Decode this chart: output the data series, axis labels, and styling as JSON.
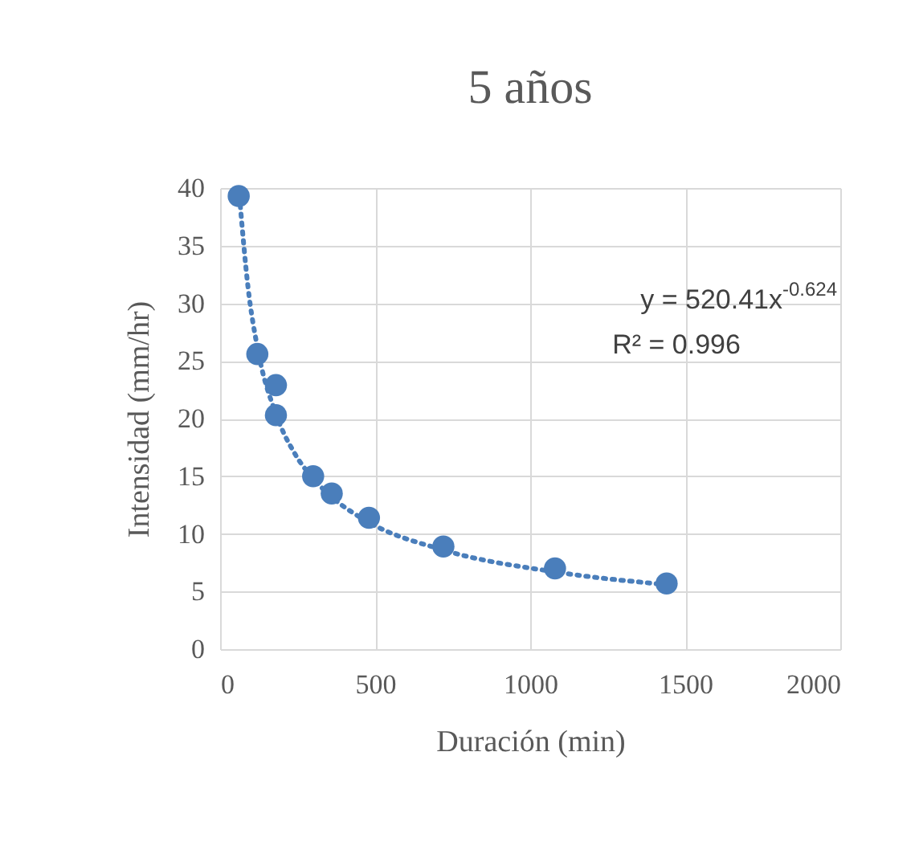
{
  "chart_data": {
    "type": "scatter",
    "title": "5 años",
    "xlabel": "Duración (min)",
    "ylabel": "Intensidad (mm/hr)",
    "annotations": [
      "y = 520.41x$^{-0.624}$",
      "R² = 0.996"
    ],
    "series": [
      {
        "type": "scatter",
        "color": "#4a7ebb",
        "x": [
          60,
          120,
          180,
          180,
          300,
          360,
          480,
          720,
          1080,
          1440
        ],
        "values": [
          39.3,
          25.6,
          22.9,
          20.3,
          15.0,
          13.5,
          11.4,
          8.9,
          7.0,
          5.7
        ]
      },
      {
        "type": "line",
        "color": "#4a7ebb",
        "line_style": "dotted",
        "marker": "none",
        "x": [
          65,
          90,
          120,
          180,
          240,
          300,
          360,
          480,
          720,
          1080,
          1440
        ],
        "values": [
          38.5,
          31.4,
          26.2,
          20.4,
          17.0,
          14.8,
          13.2,
          11.0,
          8.6,
          6.7,
          5.6
        ]
      }
    ],
    "marker": "circle",
    "grid": true,
    "xlim": [
      0,
      2000
    ],
    "xticks": [
      0,
      500,
      1000,
      1500,
      2000
    ],
    "ylim": [
      0,
      40
    ],
    "yticks": [
      0,
      5,
      10,
      15,
      20,
      25,
      30,
      35,
      40
    ]
  }
}
